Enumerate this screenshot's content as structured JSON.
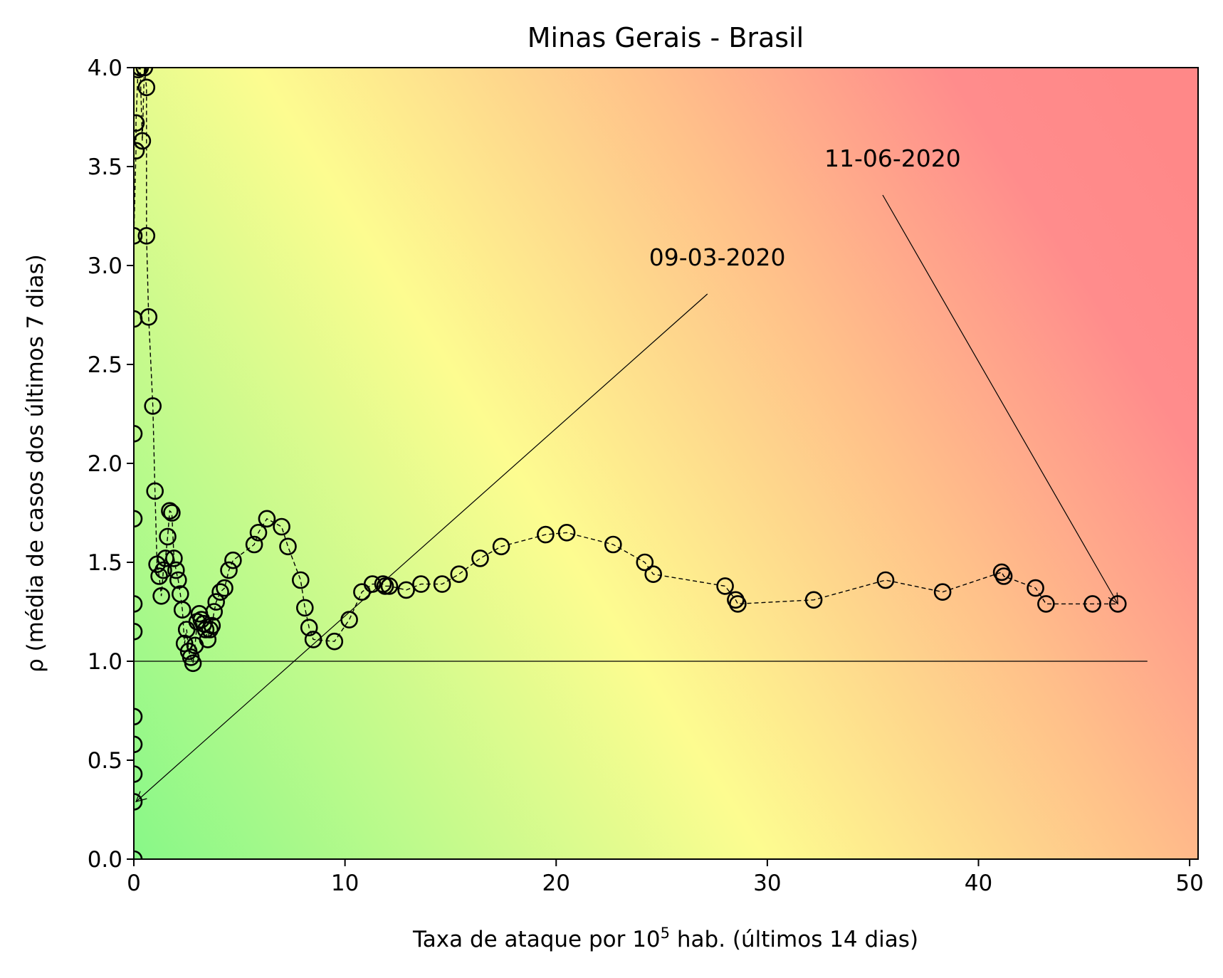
{
  "chart_data": {
    "type": "scatter",
    "title": "Minas Gerais - Brasil",
    "xlabel_prefix": "Taxa de ataque por 10",
    "xlabel_sup": "5",
    "xlabel_suffix": " hab. (últimos 14 dias)",
    "ylabel": "ρ (média de casos dos últimos 7 dias)",
    "xlim": [
      0,
      50.4
    ],
    "ylim": [
      0,
      4.0
    ],
    "xticks": [
      0,
      10,
      20,
      30,
      40,
      50
    ],
    "xtick_labels": [
      "0",
      "10",
      "20",
      "30",
      "40",
      "50"
    ],
    "yticks": [
      0,
      0.5,
      1,
      1.5,
      2,
      2.5,
      3,
      3.5,
      4
    ],
    "ytick_labels": [
      "0.0",
      "0.5",
      "1.0",
      "1.5",
      "2.0",
      "2.5",
      "3.0",
      "3.5",
      "4.0"
    ],
    "grid": false,
    "background": "risk gradient: green (low x, low ρ) → yellow → red (high x, high ρ)",
    "colors": {
      "green": "#88f888",
      "yellow": "#fdfc90",
      "orange": "#ffc08a",
      "red": "#ff8c8c",
      "marker_edge": "#000000"
    },
    "reference_line": {
      "y": 1.0,
      "x_start": 0,
      "x_end": 48
    },
    "annotations": [
      {
        "text": "09-03-2020",
        "text_x": 24.4,
        "text_y": 3.0,
        "point_x": 0.1,
        "point_y": 0.29
      },
      {
        "text": "11-06-2020",
        "text_x": 32.7,
        "text_y": 3.5,
        "point_x": 46.6,
        "point_y": 1.29
      }
    ],
    "series": [
      {
        "marker": "open-circle",
        "linestyle": "dashed",
        "x": [
          0.0,
          0.0,
          0.0,
          0.0,
          0.0,
          0.0,
          0.0,
          0.0,
          0.0,
          0.0,
          0.0,
          0.1,
          0.1,
          0.2,
          0.3,
          0.4,
          0.5,
          0.6,
          0.6,
          0.7,
          0.9,
          1.0,
          1.1,
          1.2,
          1.3,
          1.4,
          1.5,
          1.6,
          1.7,
          1.8,
          1.9,
          2.0,
          2.1,
          2.2,
          2.3,
          2.4,
          2.5,
          2.6,
          2.7,
          2.8,
          2.9,
          3.0,
          3.1,
          3.2,
          3.3,
          3.4,
          3.5,
          3.6,
          3.7,
          3.8,
          3.9,
          4.1,
          4.3,
          4.5,
          4.7,
          5.7,
          5.9,
          6.3,
          7.0,
          7.3,
          7.9,
          8.1,
          8.3,
          8.5,
          9.5,
          10.2,
          10.8,
          11.3,
          11.8,
          11.9,
          12.1,
          12.9,
          13.6,
          14.6,
          15.4,
          16.4,
          17.4,
          19.5,
          20.5,
          22.7,
          24.2,
          24.6,
          28.0,
          28.5,
          28.6,
          32.2,
          35.6,
          38.3,
          41.1,
          41.2,
          42.7,
          43.2,
          45.4,
          46.6
        ],
        "y": [
          0.0,
          0.29,
          0.43,
          0.58,
          0.72,
          1.15,
          1.29,
          1.72,
          2.15,
          2.73,
          3.15,
          3.58,
          3.72,
          3.99,
          4.0,
          3.63,
          4.0,
          3.9,
          3.15,
          2.74,
          2.29,
          1.86,
          1.49,
          1.43,
          1.33,
          1.46,
          1.52,
          1.63,
          1.76,
          1.75,
          1.52,
          1.46,
          1.41,
          1.34,
          1.26,
          1.09,
          1.16,
          1.05,
          1.02,
          0.99,
          1.08,
          1.2,
          1.24,
          1.21,
          1.19,
          1.16,
          1.11,
          1.16,
          1.18,
          1.25,
          1.3,
          1.35,
          1.37,
          1.46,
          1.51,
          1.59,
          1.65,
          1.72,
          1.68,
          1.58,
          1.41,
          1.27,
          1.17,
          1.11,
          1.1,
          1.21,
          1.35,
          1.39,
          1.39,
          1.38,
          1.38,
          1.36,
          1.39,
          1.39,
          1.44,
          1.52,
          1.58,
          1.64,
          1.65,
          1.59,
          1.5,
          1.44,
          1.38,
          1.31,
          1.29,
          1.31,
          1.41,
          1.35,
          1.45,
          1.43,
          1.37,
          1.29,
          1.29,
          1.29
        ]
      }
    ]
  }
}
